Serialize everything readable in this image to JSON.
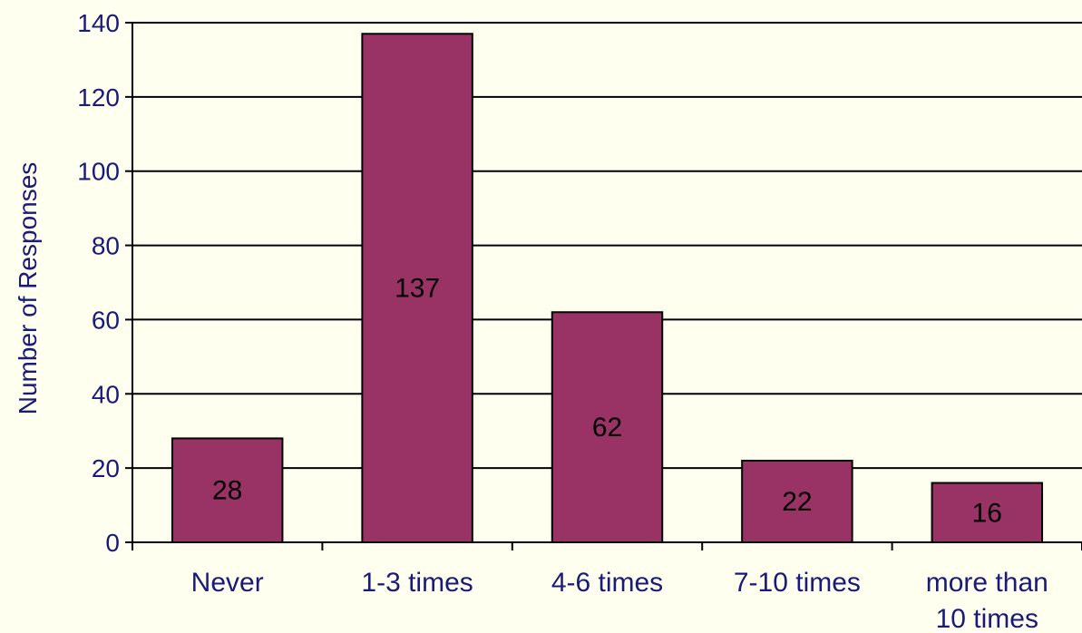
{
  "chart_data": {
    "type": "bar",
    "title": "",
    "xlabel": "",
    "ylabel": "Number of Responses",
    "categories": [
      [
        "Never"
      ],
      [
        "1-3 times"
      ],
      [
        "4-6 times"
      ],
      [
        "7-10 times"
      ],
      [
        "more than",
        "10 times"
      ]
    ],
    "values": [
      28,
      137,
      62,
      22,
      16
    ],
    "data_labels": [
      "28",
      "137",
      "62",
      "22",
      "16"
    ],
    "ylim": [
      0,
      140
    ],
    "yticks": [
      0,
      20,
      40,
      60,
      80,
      100,
      120,
      140
    ],
    "grid": true,
    "legend": "none",
    "colors": {
      "bar_fill": "#993366",
      "bar_stroke": "#000000",
      "background": "#fffff0",
      "grid": "#000000",
      "text": "#1a1a7a"
    }
  }
}
